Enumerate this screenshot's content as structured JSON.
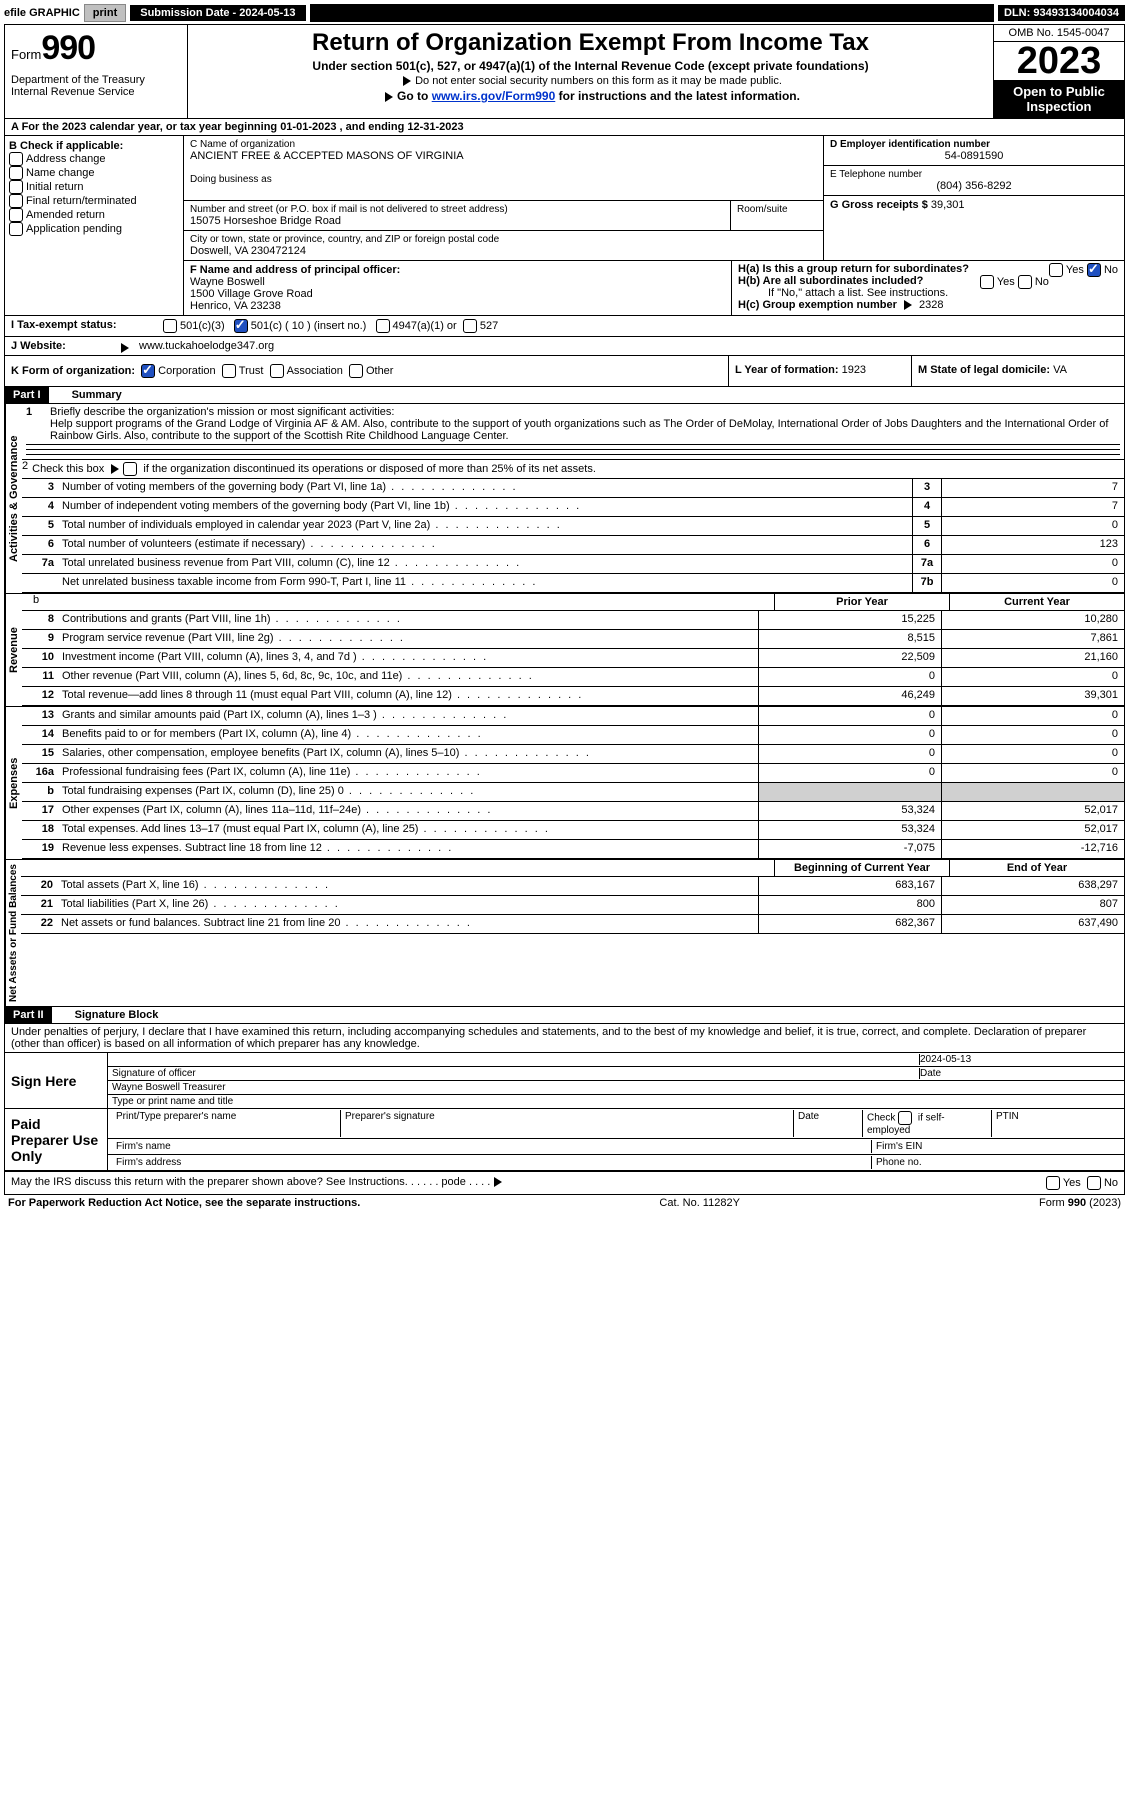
{
  "topbar": {
    "efile": "efile GRAPHIC",
    "print": "print",
    "sub_label": "Submission Date - 2024-05-13",
    "dln": "DLN: 93493134004034"
  },
  "header": {
    "form_label": "Form",
    "form_no": "990",
    "dept": "Department of the Treasury Internal Revenue Service",
    "title": "Return of Organization Exempt From Income Tax",
    "sub1": "Under section 501(c), 527, or 4947(a)(1) of the Internal Revenue Code (except private foundations)",
    "sub2": "Do not enter social security numbers on this form as it may be made public.",
    "sub3_pre": "Go to ",
    "sub3_link": "www.irs.gov/Form990",
    "sub3_post": " for instructions and the latest information.",
    "omb": "OMB No. 1545-0047",
    "year": "2023",
    "inspect": "Open to Public Inspection"
  },
  "row_a": "A For the 2023 calendar year, or tax year beginning 01-01-2023   , and ending 12-31-2023",
  "col_b": {
    "title": "B Check if applicable:",
    "opts": [
      "Address change",
      "Name change",
      "Initial return",
      "Final return/terminated",
      "Amended return",
      "Application pending"
    ]
  },
  "col_c": {
    "name_lbl": "C Name of organization",
    "name": "ANCIENT FREE & ACCEPTED MASONS OF VIRGINIA",
    "dba_lbl": "Doing business as",
    "addr_lbl": "Number and street (or P.O. box if mail is not delivered to street address)",
    "room_lbl": "Room/suite",
    "addr": "15075 Horseshoe Bridge Road",
    "city_lbl": "City or town, state or province, country, and ZIP or foreign postal code",
    "city": "Doswell, VA  230472124",
    "f_lbl": "F Name and address of principal officer:",
    "f_val": "Wayne Boswell\n1500 Village Grove Road\nHenrico, VA  23238"
  },
  "col_d": {
    "ein_lbl": "D Employer identification number",
    "ein": "54-0891590",
    "tel_lbl": "E Telephone number",
    "tel": "(804) 356-8292",
    "gross_lbl": "G Gross receipts $",
    "gross": "39,301",
    "ha": "H(a)  Is this a group return for subordinates?",
    "hb": "H(b)  Are all subordinates included?",
    "hb_note": "If \"No,\" attach a list. See instructions.",
    "hc": "H(c)  Group exemption number ",
    "hc_val": "2328",
    "yes": "Yes",
    "no": "No"
  },
  "row_i": {
    "lbl": "I    Tax-exempt status:",
    "o1": "501(c)(3)",
    "o2": "501(c) ( 10 ) (insert no.)",
    "o3": "4947(a)(1) or",
    "o4": "527"
  },
  "row_j": {
    "lbl": "J    Website:",
    "arrow": true,
    "val": "www.tuckahoelodge347.org"
  },
  "row_k": {
    "lbl": "K Form of organization:",
    "o1": "Corporation",
    "o2": "Trust",
    "o3": "Association",
    "o4": "Other"
  },
  "row_l": {
    "lbl": "L Year of formation:",
    "val": "1923"
  },
  "row_m": {
    "lbl": "M State of legal domicile:",
    "val": "VA"
  },
  "part1": {
    "hdr": "Part I",
    "title": "Summary",
    "side_ag": "Activities & Governance",
    "side_rev": "Revenue",
    "side_exp": "Expenses",
    "side_na": "Net Assets or Fund Balances",
    "l1_lbl": "Briefly describe the organization's mission or most significant activities:",
    "l1_txt": "Help support programs of the Grand Lodge of Virginia AF & AM. Also, contribute to the support of youth organizations such as The Order of DeMolay, International Order of Jobs Daughters and the International Order of Rainbow Girls. Also, contribute to the support of the Scottish Rite Childhood Language Center.",
    "l2": "Check this box      if the organization discontinued its operations or disposed of more than 25% of its net assets.",
    "rows_ag": [
      {
        "n": "3",
        "t": "Number of voting members of the governing body (Part VI, line 1a)",
        "bn": "3",
        "bv": "7"
      },
      {
        "n": "4",
        "t": "Number of independent voting members of the governing body (Part VI, line 1b)",
        "bn": "4",
        "bv": "7"
      },
      {
        "n": "5",
        "t": "Total number of individuals employed in calendar year 2023 (Part V, line 2a)",
        "bn": "5",
        "bv": "0"
      },
      {
        "n": "6",
        "t": "Total number of volunteers (estimate if necessary)",
        "bn": "6",
        "bv": "123"
      },
      {
        "n": "7a",
        "t": "Total unrelated business revenue from Part VIII, column (C), line 12",
        "bn": "7a",
        "bv": "0"
      },
      {
        "n": "",
        "t": "Net unrelated business taxable income from Form 990-T, Part I, line 11",
        "bn": "7b",
        "bv": "0"
      }
    ],
    "hdr_b": "b",
    "hdr_py": "Prior Year",
    "hdr_cy": "Current Year",
    "rows_rev": [
      {
        "n": "8",
        "t": "Contributions and grants (Part VIII, line 1h)",
        "py": "15,225",
        "cy": "10,280"
      },
      {
        "n": "9",
        "t": "Program service revenue (Part VIII, line 2g)",
        "py": "8,515",
        "cy": "7,861"
      },
      {
        "n": "10",
        "t": "Investment income (Part VIII, column (A), lines 3, 4, and 7d )",
        "py": "22,509",
        "cy": "21,160"
      },
      {
        "n": "11",
        "t": "Other revenue (Part VIII, column (A), lines 5, 6d, 8c, 9c, 10c, and 11e)",
        "py": "0",
        "cy": "0"
      },
      {
        "n": "12",
        "t": "Total revenue—add lines 8 through 11 (must equal Part VIII, column (A), line 12)",
        "py": "46,249",
        "cy": "39,301"
      }
    ],
    "rows_exp": [
      {
        "n": "13",
        "t": "Grants and similar amounts paid (Part IX, column (A), lines 1–3 )",
        "py": "0",
        "cy": "0"
      },
      {
        "n": "14",
        "t": "Benefits paid to or for members (Part IX, column (A), line 4)",
        "py": "0",
        "cy": "0"
      },
      {
        "n": "15",
        "t": "Salaries, other compensation, employee benefits (Part IX, column (A), lines 5–10)",
        "py": "0",
        "cy": "0"
      },
      {
        "n": "16a",
        "t": "Professional fundraising fees (Part IX, column (A), line 11e)",
        "py": "0",
        "cy": "0"
      },
      {
        "n": "b",
        "t": "Total fundraising expenses (Part IX, column (D), line 25) 0",
        "py": "",
        "cy": "",
        "grey": true
      },
      {
        "n": "17",
        "t": "Other expenses (Part IX, column (A), lines 11a–11d, 11f–24e)",
        "py": "53,324",
        "cy": "52,017"
      },
      {
        "n": "18",
        "t": "Total expenses. Add lines 13–17 (must equal Part IX, column (A), line 25)",
        "py": "53,324",
        "cy": "52,017"
      },
      {
        "n": "19",
        "t": "Revenue less expenses. Subtract line 18 from line 12",
        "py": "-7,075",
        "cy": "-12,716"
      }
    ],
    "hdr_boc": "Beginning of Current Year",
    "hdr_eoy": "End of Year",
    "rows_na": [
      {
        "n": "20",
        "t": "Total assets (Part X, line 16)",
        "py": "683,167",
        "cy": "638,297"
      },
      {
        "n": "21",
        "t": "Total liabilities (Part X, line 26)",
        "py": "800",
        "cy": "807"
      },
      {
        "n": "22",
        "t": "Net assets or fund balances. Subtract line 21 from line 20",
        "py": "682,367",
        "cy": "637,490"
      }
    ]
  },
  "part2": {
    "hdr": "Part II",
    "title": "Signature Block",
    "decl": "Under penalties of perjury, I declare that I have examined this return, including accompanying schedules and statements, and to the best of my knowledge and belief, it is true, correct, and complete. Declaration of preparer (other than officer) is based on all information of which preparer has any knowledge.",
    "sign": "Sign Here",
    "sig_of": "Signature of officer",
    "sig_date": "2024-05-13",
    "date_lbl": "Date",
    "sig_name": "Wayne Boswell  Treasurer",
    "sig_type": "Type or print name and title",
    "paid": "Paid Preparer Use Only",
    "p_name": "Print/Type preparer's name",
    "p_sig": "Preparer's signature",
    "p_date": "Date",
    "p_check": "Check       if self-employed",
    "p_ptin": "PTIN",
    "p_firm": "Firm's name",
    "p_ein": "Firm's EIN",
    "p_addr": "Firm's address",
    "p_phone": "Phone no.",
    "discuss": "May the IRS discuss this return with the preparer shown above? See Instructions.",
    "yes": "Yes",
    "no": "No"
  },
  "footer": {
    "l": "For Paperwork Reduction Act Notice, see the separate instructions.",
    "c": "Cat. No. 11282Y",
    "r": "Form 990 (2023)"
  }
}
